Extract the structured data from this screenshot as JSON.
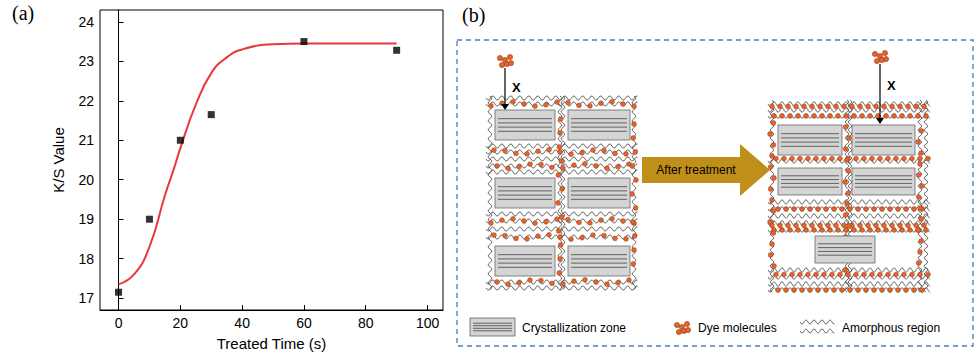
{
  "chart_data": {
    "type": "scatter",
    "panel_label": "(a)",
    "x_label": "Treated Time (s)",
    "y_label": "K/S Value",
    "xlim": [
      -6,
      105
    ],
    "xticks": [
      0,
      20,
      40,
      60,
      80,
      100
    ],
    "ylim": [
      16.7,
      24.3
    ],
    "yticks": [
      17,
      18,
      19,
      20,
      21,
      22,
      23,
      24
    ],
    "grid": false,
    "series": [
      {
        "type": "line",
        "color": "#e8383d",
        "line_style": "solid",
        "x": [
          0,
          5,
          10,
          15,
          18,
          20,
          25,
          30,
          35,
          40,
          50,
          60,
          70,
          80,
          90
        ],
        "values": [
          17.35,
          17.6,
          18.3,
          19.6,
          20.3,
          20.8,
          21.9,
          22.7,
          23.1,
          23.3,
          23.43,
          23.45,
          23.45,
          23.45,
          23.45
        ]
      },
      {
        "type": "scatter",
        "color": "#000000",
        "marker": "square",
        "x": [
          0,
          10,
          20,
          30,
          60,
          90
        ],
        "values": [
          17.15,
          19.0,
          21.0,
          21.65,
          23.5,
          23.28
        ]
      }
    ]
  },
  "diagram": {
    "panel_label": "(b)",
    "arrow_label": "After treatment",
    "before": {
      "blocked_label": "X",
      "crystallization_zones": 6
    },
    "after": {
      "blocked_label": "X",
      "crystallization_zones": 5
    },
    "legend": [
      {
        "label": "Crystallization zone"
      },
      {
        "label": "Dye molecules"
      },
      {
        "label": "Amorphous region"
      }
    ]
  }
}
